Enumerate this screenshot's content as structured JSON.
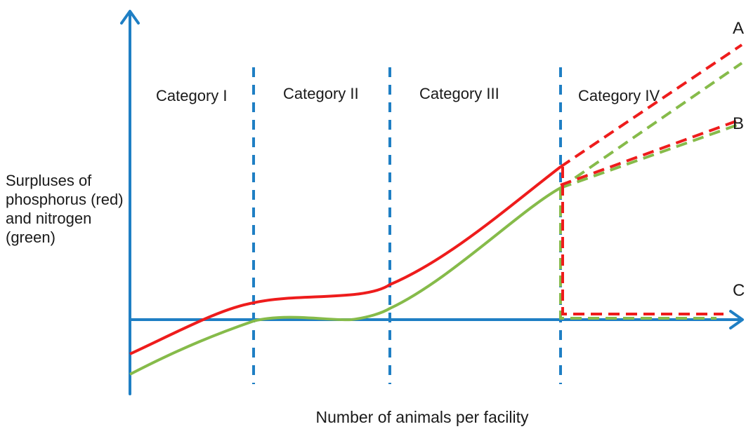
{
  "diagram": {
    "categories": [
      "Category I",
      "Category II",
      "Category III",
      "Category IV"
    ],
    "y_axis_label": "Surpluses of phosphorus (red) and nitrogen (green)",
    "x_axis_label": "Number of animals per facility",
    "scenario_labels": {
      "a": "A",
      "b": "B",
      "c": "C"
    },
    "colors": {
      "axis": "#1f7fc4",
      "phosphorus": "#ee1c1c",
      "nitrogen": "#86bb4a"
    }
  }
}
